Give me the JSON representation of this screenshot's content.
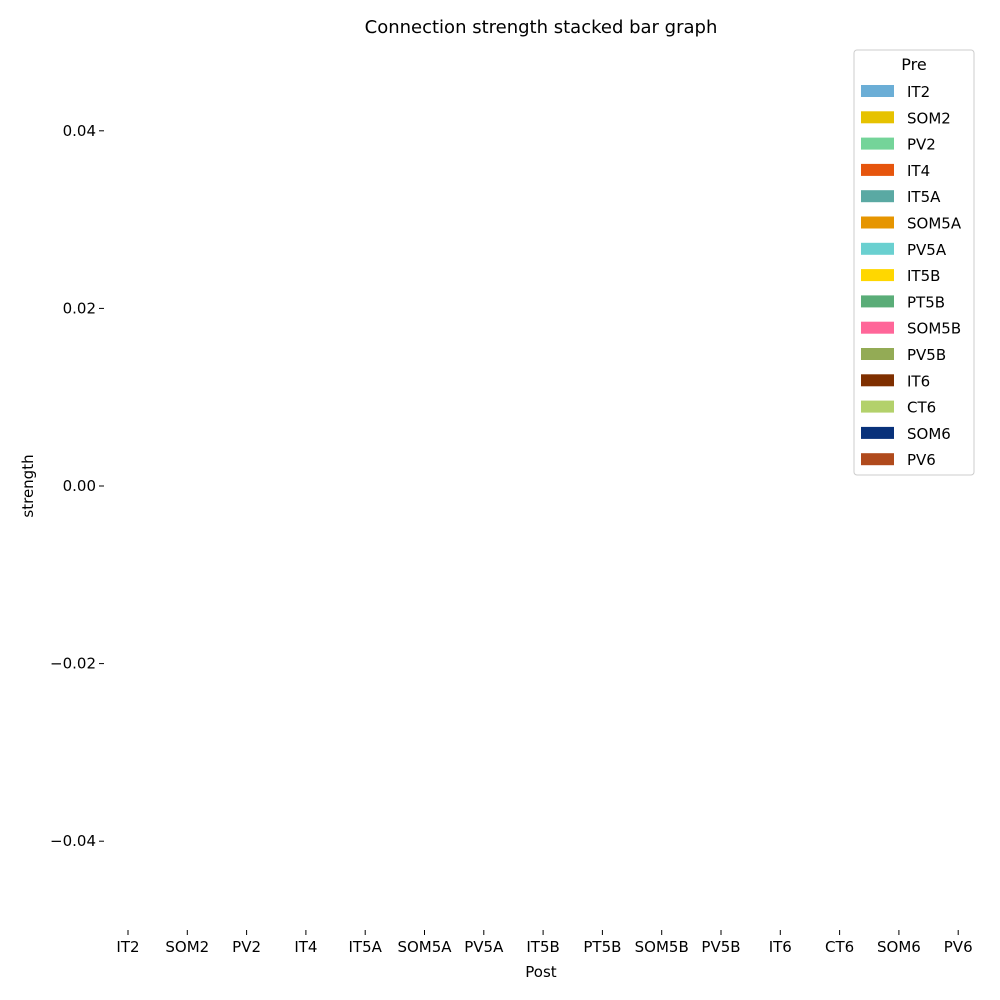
{
  "chart_data": {
    "type": "bar",
    "stacked": true,
    "title": "Connection strength stacked bar graph",
    "xlabel": "Post",
    "ylabel": "strength",
    "categories": [
      "IT2",
      "SOM2",
      "PV2",
      "IT4",
      "IT5A",
      "SOM5A",
      "PV5A",
      "IT5B",
      "PT5B",
      "SOM5B",
      "PV5B",
      "IT6",
      "CT6",
      "SOM6",
      "PV6"
    ],
    "ylim": [
      -0.05,
      0.05
    ],
    "yticks": [
      -0.04,
      -0.02,
      0.0,
      0.02,
      0.04
    ],
    "ytick_labels": [
      "−0.04",
      "−0.02",
      "0.00",
      "0.02",
      "0.04"
    ],
    "grid": false,
    "legend": {
      "title": "Pre",
      "placement": "top-right",
      "entries": [
        {
          "name": "IT2",
          "color": "#6baed6"
        },
        {
          "name": "SOM2",
          "color": "#e6c200"
        },
        {
          "name": "PV2",
          "color": "#74d499"
        },
        {
          "name": "IT4",
          "color": "#e6550d"
        },
        {
          "name": "IT5A",
          "color": "#5aa9a3"
        },
        {
          "name": "SOM5A",
          "color": "#e69500"
        },
        {
          "name": "PV5A",
          "color": "#6ad0d0"
        },
        {
          "name": "IT5B",
          "color": "#ffd700"
        },
        {
          "name": "PT5B",
          "color": "#5aad78"
        },
        {
          "name": "SOM5B",
          "color": "#ff6699"
        },
        {
          "name": "PV5B",
          "color": "#93ab55"
        },
        {
          "name": "IT6",
          "color": "#7f2f00"
        },
        {
          "name": "CT6",
          "color": "#b3d16b"
        },
        {
          "name": "SOM6",
          "color": "#08317a"
        },
        {
          "name": "PV6",
          "color": "#b04a1c"
        }
      ]
    },
    "series": []
  }
}
